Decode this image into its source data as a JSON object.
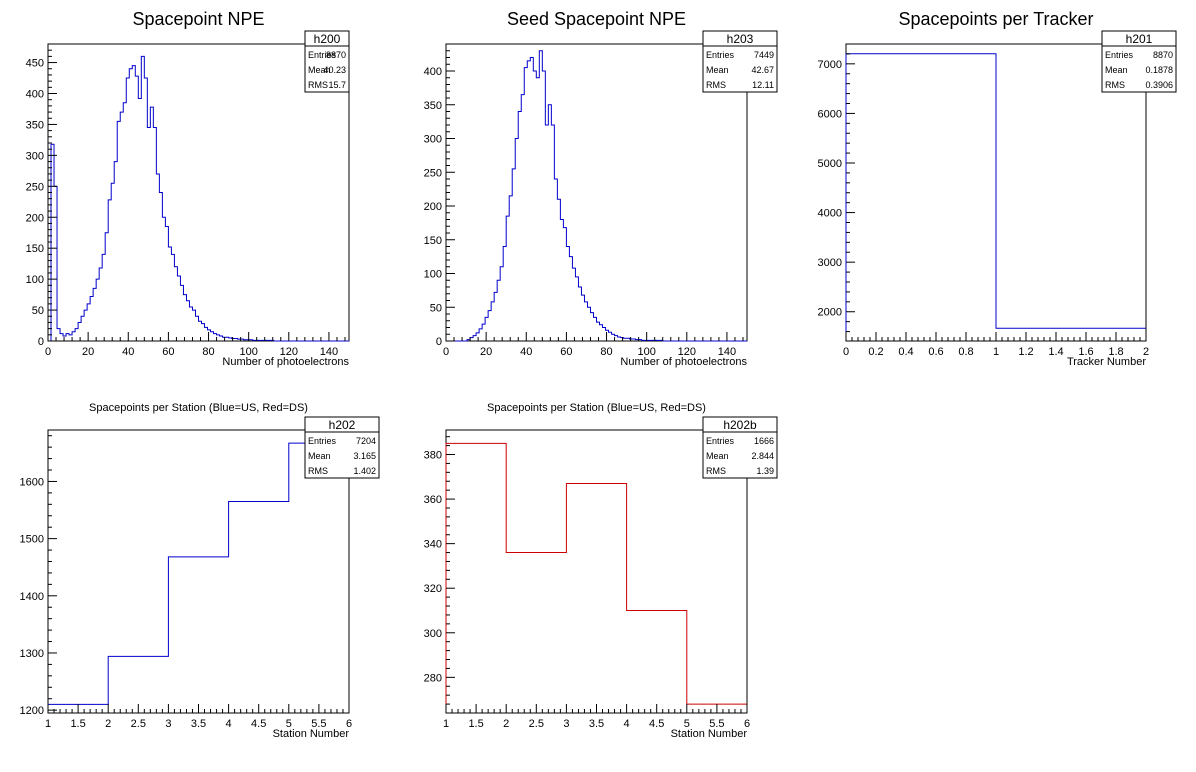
{
  "chart_data": [
    {
      "id": "h200",
      "type": "histogram",
      "title": "Spacepoint NPE",
      "xlabel": "Number of photoelectrons",
      "ylabel": "",
      "xlim": [
        0,
        150
      ],
      "ylim": [
        0,
        480
      ],
      "xticks": [
        0,
        20,
        40,
        60,
        80,
        100,
        120,
        140
      ],
      "yticks": [
        0,
        50,
        100,
        150,
        200,
        250,
        300,
        350,
        400,
        450
      ],
      "line_color": "#0000cc",
      "bin_width": 1.5,
      "values": [
        0,
        318,
        250,
        20,
        12,
        8,
        12,
        10,
        15,
        20,
        30,
        40,
        50,
        60,
        72,
        85,
        100,
        118,
        140,
        175,
        228,
        255,
        290,
        355,
        370,
        385,
        425,
        440,
        445,
        428,
        392,
        460,
        425,
        345,
        378,
        345,
        270,
        240,
        200,
        185,
        152,
        140,
        120,
        105,
        90,
        75,
        65,
        55,
        50,
        40,
        32,
        28,
        22,
        18,
        15,
        12,
        10,
        8,
        6,
        6,
        5,
        4,
        4,
        3,
        3,
        2,
        2,
        2,
        1,
        1,
        1,
        1,
        1,
        1,
        1,
        0,
        0,
        0,
        0,
        0,
        0,
        0,
        0,
        0,
        0,
        0,
        0,
        0,
        0,
        0,
        0,
        0,
        0,
        0,
        0,
        0,
        0,
        0,
        0,
        0
      ],
      "stats": {
        "name": "h200",
        "rows": [
          [
            "Entries",
            "8870"
          ],
          [
            "Mean",
            "40.23"
          ],
          [
            "RMS",
            "15.7"
          ]
        ]
      }
    },
    {
      "id": "h203",
      "type": "histogram",
      "title": "Seed Spacepoint NPE",
      "xlabel": "Number of photoelectrons",
      "ylabel": "",
      "xlim": [
        0,
        150
      ],
      "ylim": [
        0,
        440
      ],
      "xticks": [
        0,
        20,
        40,
        60,
        80,
        100,
        120,
        140
      ],
      "yticks": [
        0,
        50,
        100,
        150,
        200,
        250,
        300,
        350,
        400
      ],
      "line_color": "#0000cc",
      "bin_width": 1.5,
      "values": [
        0,
        0,
        0,
        0,
        0,
        0,
        0,
        2,
        5,
        8,
        12,
        18,
        25,
        35,
        45,
        58,
        72,
        90,
        110,
        140,
        185,
        215,
        255,
        300,
        340,
        365,
        405,
        415,
        420,
        400,
        390,
        430,
        400,
        320,
        350,
        320,
        240,
        210,
        180,
        168,
        140,
        125,
        108,
        95,
        80,
        68,
        58,
        50,
        42,
        35,
        28,
        24,
        20,
        16,
        13,
        10,
        8,
        6,
        5,
        4,
        4,
        3,
        3,
        2,
        2,
        1,
        1,
        1,
        1,
        1,
        1,
        1,
        0,
        0,
        0,
        0,
        0,
        0,
        0,
        0,
        0,
        0,
        0,
        0,
        0,
        0,
        0,
        0,
        0,
        0,
        0,
        0,
        0,
        0,
        0,
        0,
        0,
        0,
        0,
        0
      ],
      "stats": {
        "name": "h203",
        "rows": [
          [
            "Entries",
            "7449"
          ],
          [
            "Mean",
            "42.67"
          ],
          [
            "RMS",
            "12.11"
          ]
        ]
      }
    },
    {
      "id": "h201",
      "type": "histogram",
      "title": "Spacepoints per Tracker",
      "xlabel": "Tracker Number",
      "ylabel": "",
      "xlim": [
        0,
        2
      ],
      "ylim": [
        1410,
        7400
      ],
      "xticks": [
        0,
        0.2,
        0.4,
        0.6,
        0.8,
        1,
        1.2,
        1.4,
        1.6,
        1.8,
        2
      ],
      "yticks": [
        2000,
        3000,
        4000,
        5000,
        6000,
        7000
      ],
      "line_color": "#0000cc",
      "bin_width": 1,
      "values": [
        7204,
        1666
      ],
      "stats": {
        "name": "h201",
        "rows": [
          [
            "Entries",
            "8870"
          ],
          [
            "Mean",
            "0.1878"
          ],
          [
            "RMS",
            "0.3906"
          ]
        ]
      }
    },
    {
      "id": "h202",
      "type": "histogram",
      "title": "Spacepoints per Station (Blue=US, Red=DS)",
      "xlabel": "Station Number",
      "ylabel": "",
      "xlim": [
        1,
        6
      ],
      "ylim": [
        1195,
        1690
      ],
      "xticks": [
        1,
        1.5,
        2,
        2.5,
        3,
        3.5,
        4,
        4.5,
        5,
        5.5,
        6
      ],
      "yticks": [
        1200,
        1300,
        1400,
        1500,
        1600
      ],
      "line_color": "#0000cc",
      "bin_width": 1,
      "values": [
        1210,
        1294,
        1468,
        1565,
        1667
      ],
      "stats": {
        "name": "h202",
        "rows": [
          [
            "Entries",
            "7204"
          ],
          [
            "Mean",
            "3.165"
          ],
          [
            "RMS",
            "1.402"
          ]
        ]
      }
    },
    {
      "id": "h202b",
      "type": "histogram",
      "title": "Spacepoints per Station (Blue=US, Red=DS)",
      "xlabel": "Station Number",
      "ylabel": "",
      "xlim": [
        1,
        6
      ],
      "ylim": [
        264,
        391
      ],
      "xticks": [
        1,
        1.5,
        2,
        2.5,
        3,
        3.5,
        4,
        4.5,
        5,
        5.5,
        6
      ],
      "yticks": [
        280,
        300,
        320,
        340,
        360,
        380
      ],
      "line_color": "#cc0000",
      "bin_width": 1,
      "values": [
        385,
        336,
        367,
        310,
        268
      ],
      "stats": {
        "name": "h202b",
        "rows": [
          [
            "Entries",
            "1666"
          ],
          [
            "Mean",
            "2.844"
          ],
          [
            "RMS",
            "1.39"
          ]
        ]
      }
    }
  ]
}
